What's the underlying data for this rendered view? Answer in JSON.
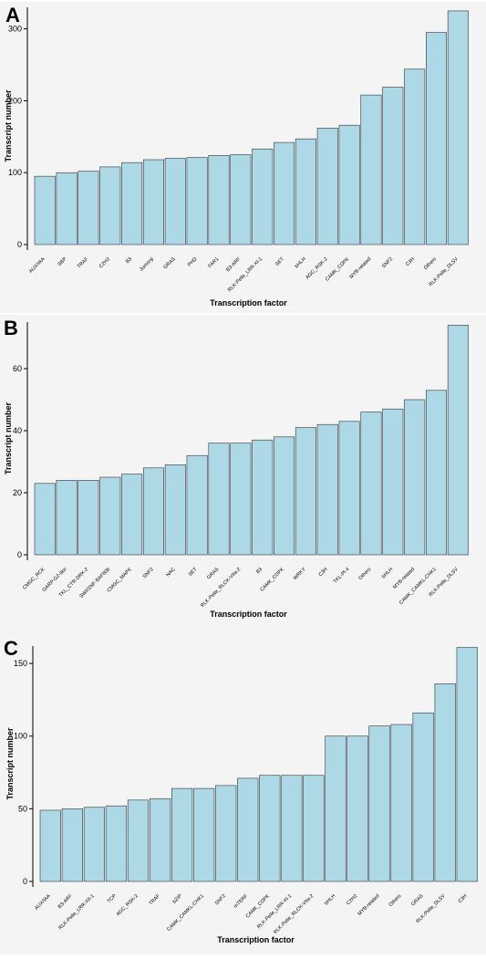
{
  "chart_data": [
    {
      "type": "bar",
      "panel": "A",
      "xlabel": "Transcription factor",
      "ylabel": "Transcript number",
      "ylim": [
        0,
        330
      ],
      "yticks": [
        0,
        100,
        200,
        300
      ],
      "grid": false,
      "categories": [
        "AUX/IAA",
        "SBP",
        "TRAF",
        "C2H2",
        "B3",
        "Jumonji",
        "GRAS",
        "PHD",
        "FAR1",
        "B3-ARF",
        "RLK-Pelle_LRR-XI-1",
        "SET",
        "bHLH",
        "AGC_RSK-2",
        "CAMK_CDPK",
        "MYB-related",
        "SNF2",
        "C3H",
        "Others",
        "RLK-Pelle_DLSV"
      ],
      "values": [
        95,
        100,
        102,
        108,
        114,
        118,
        120,
        121,
        124,
        125,
        133,
        142,
        147,
        162,
        166,
        208,
        219,
        244,
        295,
        325
      ],
      "color": "#add8e6"
    },
    {
      "type": "bar",
      "panel": "B",
      "xlabel": "Transcription factor",
      "ylabel": "Transcript number",
      "ylim": [
        0,
        75
      ],
      "yticks": [
        0,
        20,
        40,
        60
      ],
      "grid": false,
      "categories": [
        "CMGC_RCK",
        "GARP-G2-like",
        "TKL_CTR-DRK-2",
        "SWI/SNF-BAF60b",
        "CMGC_MAPK",
        "SNF2",
        "NAC",
        "SET",
        "GRAS",
        "RLK-Pelle_RLCK-VIIa-2",
        "B3",
        "CAMK_CDPK",
        "WRKY",
        "C3H",
        "TKL-Pl-4",
        "Others",
        "bHLH",
        "MYB-related",
        "CAMK_CAMKL-CHK1",
        "RLK-Pelle_DLSV"
      ],
      "values": [
        23,
        24,
        24,
        25,
        26,
        28,
        29,
        32,
        36,
        36,
        37,
        38,
        41,
        42,
        43,
        46,
        47,
        50,
        53,
        74
      ],
      "color": "#add8e6"
    },
    {
      "type": "bar",
      "panel": "C",
      "xlabel": "Transcription factor",
      "ylabel": "Transcript number",
      "ylim": [
        0,
        162
      ],
      "yticks": [
        0,
        50,
        100,
        150
      ],
      "grid": false,
      "categories": [
        "AUX/IAA",
        "B3-ARF",
        "RLK-Pelle_LRR-XII-1",
        "TCP",
        "AGC_RSK-2",
        "TRAF",
        "bZIP",
        "CAMK_CAMKL-CHK1",
        "SNF2",
        "mTERF",
        "CAMK_CDPK",
        "RLK-Pelle_LRR-XI-1",
        "RLK-Pelle_RLCK-VIIa-2",
        "bHLH",
        "C2H2",
        "MYB-related",
        "Others",
        "GRAS",
        "RLK-Pelle_DLSV",
        "C3H"
      ],
      "values": [
        49,
        50,
        51,
        52,
        56,
        57,
        64,
        64,
        66,
        71,
        73,
        73,
        73,
        100,
        100,
        107,
        108,
        116,
        136,
        161
      ],
      "color": "#add8e6"
    }
  ]
}
